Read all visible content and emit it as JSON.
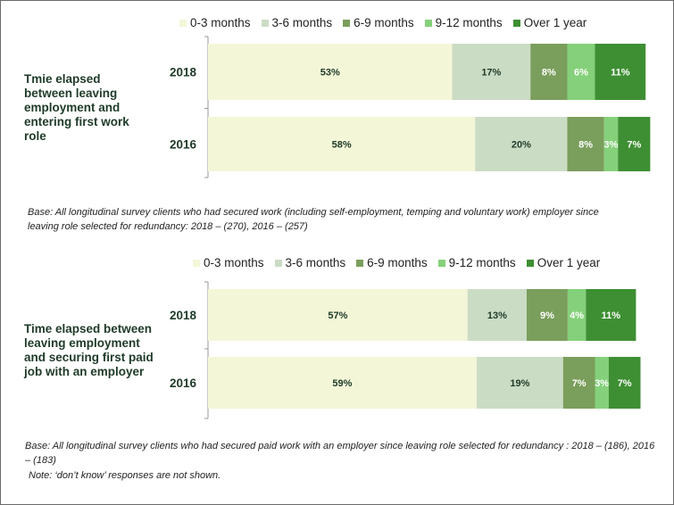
{
  "colors": {
    "0-3 months": "#f4f6d8",
    "3-6 months": "#cbdcc4",
    "6-9 months": "#7a9e5c",
    "9-12 months": "#85d07a",
    "Over 1 year": "#3e8f33"
  },
  "chart_data": [
    {
      "type": "bar",
      "orientation": "horizontal",
      "stacked": true,
      "title": "Tmie elapsed between leaving employment and entering first work role",
      "categories": [
        "2018",
        "2016"
      ],
      "series": [
        {
          "name": "0-3 months",
          "values": [
            53,
            58
          ]
        },
        {
          "name": "3-6 months",
          "values": [
            17,
            20
          ]
        },
        {
          "name": "6-9 months",
          "values": [
            8,
            8
          ]
        },
        {
          "name": "9-12 months",
          "values": [
            6,
            3
          ]
        },
        {
          "name": "Over 1 year",
          "values": [
            11,
            7
          ]
        }
      ],
      "legend": "top",
      "note": "Base: All longitudinal survey clients who had secured work (including self-employment, temping and voluntary work) employer since leaving role selected for redundancy:  2018 – (270), 2016 – (257)"
    },
    {
      "type": "bar",
      "orientation": "horizontal",
      "stacked": true,
      "title": "Time elapsed between leaving employment and securing first paid job with an employer",
      "categories": [
        "2018",
        "2016"
      ],
      "series": [
        {
          "name": "0-3 months",
          "values": [
            57,
            59
          ]
        },
        {
          "name": "3-6 months",
          "values": [
            13,
            19
          ]
        },
        {
          "name": "6-9 months",
          "values": [
            9,
            7
          ]
        },
        {
          "name": "9-12 months",
          "values": [
            4,
            3
          ]
        },
        {
          "name": "Over 1 year",
          "values": [
            11,
            7
          ]
        }
      ],
      "legend": "top",
      "note": "Base: All longitudinal survey clients who had secured paid work with an employer since leaving role selected for redundancy : 2018 – (186), 2016 – (183)",
      "note2": "Note: ‘don’t know’ responses are not shown."
    }
  ]
}
